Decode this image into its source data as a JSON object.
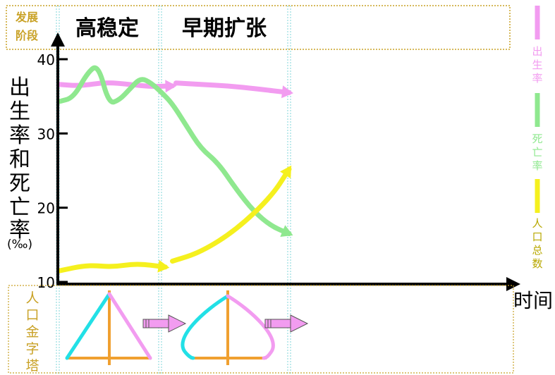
{
  "header": {
    "stage_label": "发展阶段",
    "stage_label_lines": [
      "发展",
      "阶段"
    ],
    "stages": [
      "高稳定",
      "早期扩张"
    ]
  },
  "bottom": {
    "label": "人口金字塔",
    "label_chars": [
      "人",
      "口",
      "金",
      "字",
      "塔"
    ]
  },
  "legend": {
    "items": [
      {
        "label": "出生率",
        "chars": [
          "出",
          "生",
          "率"
        ],
        "color": "#f29cf0"
      },
      {
        "label": "死亡率",
        "chars": [
          "死",
          "亡",
          "率"
        ],
        "color": "#8fe88f"
      },
      {
        "label": "人口总数",
        "chars": [
          "人",
          "口",
          "总",
          "数"
        ],
        "color": "#f5f01e"
      }
    ]
  },
  "chart_data": {
    "type": "line",
    "ylabel": "出生率和死亡率(‰)",
    "ylabel_chars": [
      "出",
      "生",
      "率",
      "和",
      "死",
      "亡",
      "率"
    ],
    "ylabel_unit": "(‰)",
    "xlabel": "时间",
    "ylim": [
      10,
      40
    ],
    "yticks": [
      10,
      20,
      30,
      40
    ],
    "x_range": [
      0,
      10
    ],
    "stage_boundaries": [
      3.2,
      6.5
    ],
    "series": [
      {
        "name": "出生率",
        "color": "#f29cf0",
        "segments": [
          [
            [
              0,
              36.6
            ],
            [
              0.6,
              36.4
            ],
            [
              1.3,
              36.9
            ],
            [
              2.0,
              36.6
            ],
            [
              2.6,
              36.3
            ],
            [
              3.2,
              36.4
            ]
          ],
          [
            [
              3.3,
              36.8
            ],
            [
              4.0,
              36.6
            ],
            [
              4.8,
              36.4
            ],
            [
              5.6,
              36.0
            ],
            [
              6.5,
              35.5
            ]
          ]
        ]
      },
      {
        "name": "死亡率",
        "color": "#8fe88f",
        "segments": [
          [
            [
              0,
              34.3
            ],
            [
              0.4,
              34.8
            ],
            [
              0.8,
              38.2
            ],
            [
              1.1,
              39.3
            ],
            [
              1.4,
              34.0
            ],
            [
              1.7,
              34.5
            ],
            [
              2.0,
              36.0
            ],
            [
              2.3,
              37.5
            ],
            [
              2.6,
              36.8
            ],
            [
              2.9,
              35.5
            ],
            [
              3.2,
              34.0
            ],
            [
              3.6,
              31.0
            ],
            [
              4.0,
              28.0
            ],
            [
              4.5,
              26.0
            ],
            [
              5.0,
              22.5
            ],
            [
              5.5,
              19.5
            ],
            [
              6.0,
              17.5
            ],
            [
              6.5,
              16.5
            ]
          ]
        ]
      },
      {
        "name": "人口总数",
        "color": "#f5f01e",
        "segments": [
          [
            [
              0,
              11.5
            ],
            [
              0.8,
              12.3
            ],
            [
              1.5,
              12.0
            ],
            [
              2.2,
              12.5
            ],
            [
              3.0,
              12.0
            ]
          ],
          [
            [
              3.2,
              12.8
            ],
            [
              4.0,
              14.0
            ],
            [
              5.0,
              17.0
            ],
            [
              6.0,
              21.5
            ],
            [
              6.5,
              25.2
            ]
          ]
        ]
      }
    ]
  }
}
